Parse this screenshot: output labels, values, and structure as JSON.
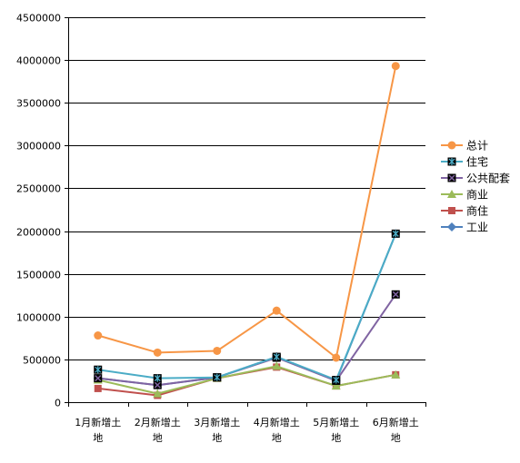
{
  "chart_data": {
    "type": "line",
    "categories": [
      "1月新增土地",
      "2月新增土地",
      "3月新增土地",
      "4月新增土地",
      "5月新增土地",
      "6月新增土地"
    ],
    "category_lines": [
      [
        "1月新增土",
        "地"
      ],
      [
        "2月新增土",
        "地"
      ],
      [
        "3月新增土",
        "地"
      ],
      [
        "4月新增土",
        "地"
      ],
      [
        "5月新增土",
        "地"
      ],
      [
        "6月新增土",
        "地"
      ]
    ],
    "ylim": [
      0,
      4500000
    ],
    "yticks": [
      0,
      500000,
      1000000,
      1500000,
      2000000,
      2500000,
      3000000,
      3500000,
      4000000,
      4500000
    ],
    "ytick_labels": [
      "0",
      "500000",
      "1000000",
      "1500000",
      "2000000",
      "2500000",
      "3000000",
      "3500000",
      "4000000",
      "4500000"
    ],
    "grid": true,
    "legend_position": "right",
    "series": [
      {
        "name": "总计",
        "color": "#f79646",
        "marker": "circle",
        "values": [
          780000,
          580000,
          600000,
          1070000,
          520000,
          3930000
        ]
      },
      {
        "name": "住宅",
        "color": "#4bacc6",
        "marker": "star-square",
        "values": [
          380000,
          280000,
          290000,
          530000,
          260000,
          1970000
        ]
      },
      {
        "name": "公共配套",
        "color": "#8064a2",
        "marker": "x-square",
        "values": [
          280000,
          200000,
          290000,
          520000,
          250000,
          1260000
        ]
      },
      {
        "name": "商业",
        "color": "#9bbb59",
        "marker": "triangle",
        "values": [
          260000,
          100000,
          280000,
          420000,
          190000,
          320000
        ]
      },
      {
        "name": "商住",
        "color": "#c0504d",
        "marker": "square",
        "values": [
          160000,
          80000,
          280000,
          410000,
          190000,
          320000
        ]
      },
      {
        "name": "工业",
        "color": "#4f81bd",
        "marker": "diamond",
        "values": [
          280000,
          200000,
          290000,
          530000,
          250000,
          1970000
        ]
      }
    ]
  }
}
